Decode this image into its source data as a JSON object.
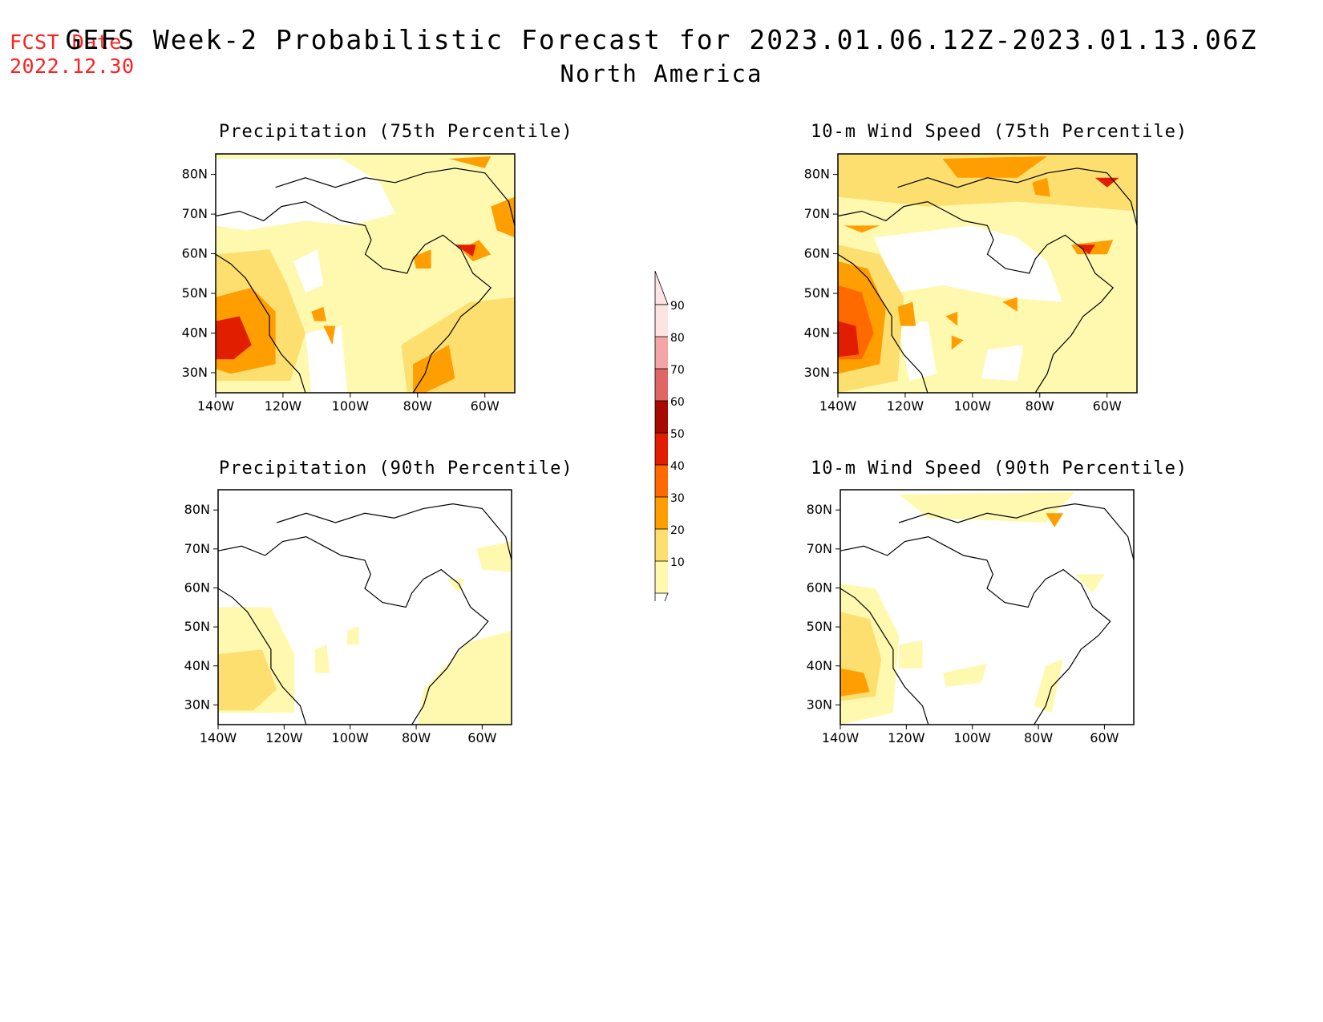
{
  "header": {
    "fcst_label": "FCST Date:",
    "fcst_date": "2022.12.30",
    "title": "GEFS Week-2 Probabilistic Forecast for 2023.01.06.12Z-2023.01.13.06Z",
    "subtitle": "North America"
  },
  "axes": {
    "lat_labels": [
      "80N",
      "70N",
      "60N",
      "50N",
      "40N",
      "30N"
    ],
    "lon_labels": [
      "140W",
      "120W",
      "100W",
      "80W",
      "60W"
    ]
  },
  "colorbar": {
    "labels": [
      "90",
      "80",
      "70",
      "60",
      "50",
      "40",
      "30",
      "20",
      "10"
    ],
    "colors": [
      "#fde3e3",
      "#f4a6a6",
      "#e06565",
      "#a60a00",
      "#e21e00",
      "#ff6a00",
      "#ff9e00",
      "#fddf70",
      "#fff9b0"
    ]
  },
  "panels": [
    {
      "id": "precip-75",
      "title": "Precipitation (75th Percentile)"
    },
    {
      "id": "wind-75",
      "title": "10-m Wind Speed (75th Percentile)"
    },
    {
      "id": "precip-90",
      "title": "Precipitation (90th Percentile)"
    },
    {
      "id": "wind-90",
      "title": "10-m Wind Speed (90th Percentile)"
    }
  ]
}
